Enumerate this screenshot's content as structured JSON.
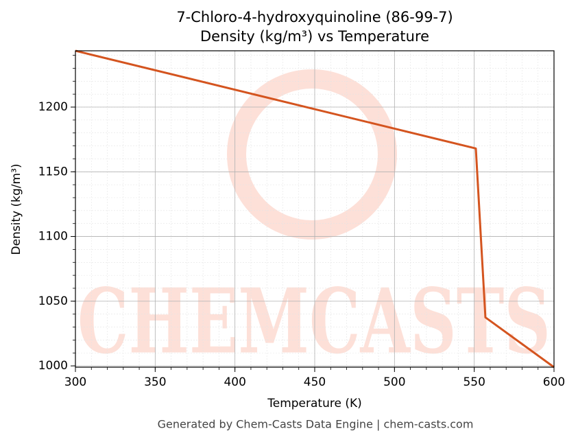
{
  "chart_data": {
    "type": "line",
    "title": "7-Chloro-4-hydroxyquinoline (86-99-7)",
    "subtitle": "Density (kg/m³) vs Temperature",
    "x_label": "Temperature (K)",
    "y_label": "Density (kg/m³)",
    "footer": "Generated by Chem-Casts Data Engine | chem-casts.com",
    "watermark": "CHEMCASTS",
    "x": [
      300,
      551,
      557,
      600
    ],
    "series": [
      {
        "name": "Density",
        "color": "#d4541f",
        "values": [
          1243.5,
          1168,
          1037.5,
          999
        ]
      }
    ],
    "xlim": [
      300,
      600
    ],
    "xticks": [
      300,
      350,
      400,
      450,
      500,
      550,
      600
    ],
    "ylim": [
      999,
      1243.5
    ],
    "yticks": [
      1000,
      1050,
      1100,
      1150,
      1200
    ],
    "grid": true
  }
}
